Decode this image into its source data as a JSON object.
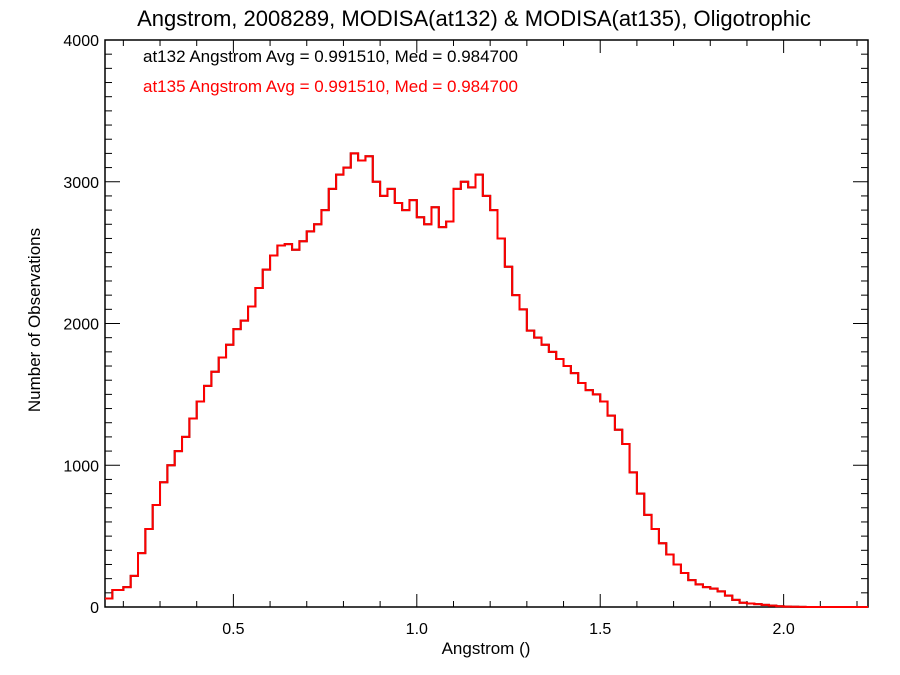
{
  "chart_data": {
    "type": "line",
    "title": "Angstrom, 2008289, MODISA(at132) & MODISA(at135), Oligotrophic",
    "xlabel": "Angstrom ()",
    "ylabel": "Number of Observations",
    "xlim": [
      0.15,
      2.23
    ],
    "ylim": [
      0,
      4000
    ],
    "x_ticks": [
      0.5,
      1.0,
      1.5,
      2.0
    ],
    "x_tick_labels": [
      "0.5",
      "1.0",
      "1.5",
      "2.0"
    ],
    "y_ticks": [
      0,
      1000,
      2000,
      3000,
      4000
    ],
    "y_tick_labels": [
      "0",
      "1000",
      "2000",
      "3000",
      "4000"
    ],
    "grid": false,
    "annotations": [
      {
        "text": "at132 Angstrom Avg = 0.991510, Med = 0.984700",
        "color": "#000000"
      },
      {
        "text": "at135 Angstrom Avg = 0.991510, Med = 0.984700",
        "color": "#ff0000"
      }
    ],
    "series": [
      {
        "color": "#000000",
        "step": true,
        "x": [
          0.15,
          0.17,
          0.2,
          0.22,
          0.24,
          0.26,
          0.28,
          0.3,
          0.32,
          0.34,
          0.36,
          0.38,
          0.4,
          0.42,
          0.44,
          0.46,
          0.48,
          0.5,
          0.52,
          0.54,
          0.56,
          0.58,
          0.6,
          0.62,
          0.64,
          0.66,
          0.68,
          0.7,
          0.72,
          0.74,
          0.76,
          0.78,
          0.8,
          0.82,
          0.84,
          0.86,
          0.88,
          0.9,
          0.92,
          0.94,
          0.96,
          0.98,
          1.0,
          1.02,
          1.04,
          1.06,
          1.08,
          1.1,
          1.12,
          1.14,
          1.16,
          1.18,
          1.2,
          1.22,
          1.24,
          1.26,
          1.28,
          1.3,
          1.32,
          1.34,
          1.36,
          1.38,
          1.4,
          1.42,
          1.44,
          1.46,
          1.48,
          1.5,
          1.52,
          1.54,
          1.56,
          1.58,
          1.6,
          1.62,
          1.64,
          1.66,
          1.68,
          1.7,
          1.72,
          1.74,
          1.76,
          1.78,
          1.8,
          1.82,
          1.84,
          1.86,
          1.88,
          1.9,
          1.92,
          1.94,
          1.96,
          1.98,
          2.0,
          2.02,
          2.04,
          2.06,
          2.08,
          2.1,
          2.12,
          2.14,
          2.16,
          2.18,
          2.2,
          2.23
        ],
        "y": [
          60,
          120,
          140,
          220,
          380,
          550,
          720,
          880,
          1000,
          1100,
          1200,
          1330,
          1450,
          1560,
          1660,
          1760,
          1850,
          1960,
          2020,
          2120,
          2250,
          2380,
          2480,
          2550,
          2560,
          2520,
          2580,
          2650,
          2700,
          2800,
          2950,
          3050,
          3100,
          3200,
          3150,
          3180,
          3000,
          2900,
          2950,
          2850,
          2800,
          2870,
          2750,
          2700,
          2820,
          2680,
          2720,
          2950,
          3000,
          2960,
          3050,
          2900,
          2800,
          2600,
          2400,
          2200,
          2100,
          1950,
          1900,
          1850,
          1800,
          1750,
          1700,
          1650,
          1580,
          1530,
          1500,
          1450,
          1350,
          1250,
          1150,
          950,
          800,
          650,
          550,
          450,
          370,
          300,
          240,
          190,
          160,
          140,
          130,
          110,
          80,
          50,
          30,
          25,
          20,
          15,
          10,
          5,
          3,
          2,
          1,
          0,
          0,
          0,
          0,
          0,
          0,
          0,
          0,
          0
        ]
      },
      {
        "color": "#ff0000",
        "step": true,
        "x": [
          0.15,
          0.17,
          0.2,
          0.22,
          0.24,
          0.26,
          0.28,
          0.3,
          0.32,
          0.34,
          0.36,
          0.38,
          0.4,
          0.42,
          0.44,
          0.46,
          0.48,
          0.5,
          0.52,
          0.54,
          0.56,
          0.58,
          0.6,
          0.62,
          0.64,
          0.66,
          0.68,
          0.7,
          0.72,
          0.74,
          0.76,
          0.78,
          0.8,
          0.82,
          0.84,
          0.86,
          0.88,
          0.9,
          0.92,
          0.94,
          0.96,
          0.98,
          1.0,
          1.02,
          1.04,
          1.06,
          1.08,
          1.1,
          1.12,
          1.14,
          1.16,
          1.18,
          1.2,
          1.22,
          1.24,
          1.26,
          1.28,
          1.3,
          1.32,
          1.34,
          1.36,
          1.38,
          1.4,
          1.42,
          1.44,
          1.46,
          1.48,
          1.5,
          1.52,
          1.54,
          1.56,
          1.58,
          1.6,
          1.62,
          1.64,
          1.66,
          1.68,
          1.7,
          1.72,
          1.74,
          1.76,
          1.78,
          1.8,
          1.82,
          1.84,
          1.86,
          1.88,
          1.9,
          1.92,
          1.94,
          1.96,
          1.98,
          2.0,
          2.02,
          2.04,
          2.06,
          2.08,
          2.1,
          2.12,
          2.14,
          2.16,
          2.18,
          2.2,
          2.23
        ],
        "y": [
          60,
          120,
          140,
          220,
          380,
          550,
          720,
          880,
          1000,
          1100,
          1200,
          1330,
          1450,
          1560,
          1660,
          1760,
          1850,
          1960,
          2020,
          2120,
          2250,
          2380,
          2480,
          2550,
          2560,
          2520,
          2580,
          2650,
          2700,
          2800,
          2950,
          3050,
          3100,
          3200,
          3150,
          3180,
          3000,
          2900,
          2950,
          2850,
          2800,
          2870,
          2750,
          2700,
          2820,
          2680,
          2720,
          2950,
          3000,
          2960,
          3050,
          2900,
          2800,
          2600,
          2400,
          2200,
          2100,
          1950,
          1900,
          1850,
          1800,
          1750,
          1700,
          1650,
          1580,
          1530,
          1500,
          1450,
          1350,
          1250,
          1150,
          950,
          800,
          650,
          550,
          450,
          370,
          300,
          240,
          190,
          160,
          140,
          130,
          110,
          80,
          50,
          30,
          25,
          20,
          15,
          10,
          5,
          3,
          2,
          1,
          0,
          0,
          0,
          0,
          0,
          0,
          0,
          0,
          0
        ]
      }
    ]
  }
}
